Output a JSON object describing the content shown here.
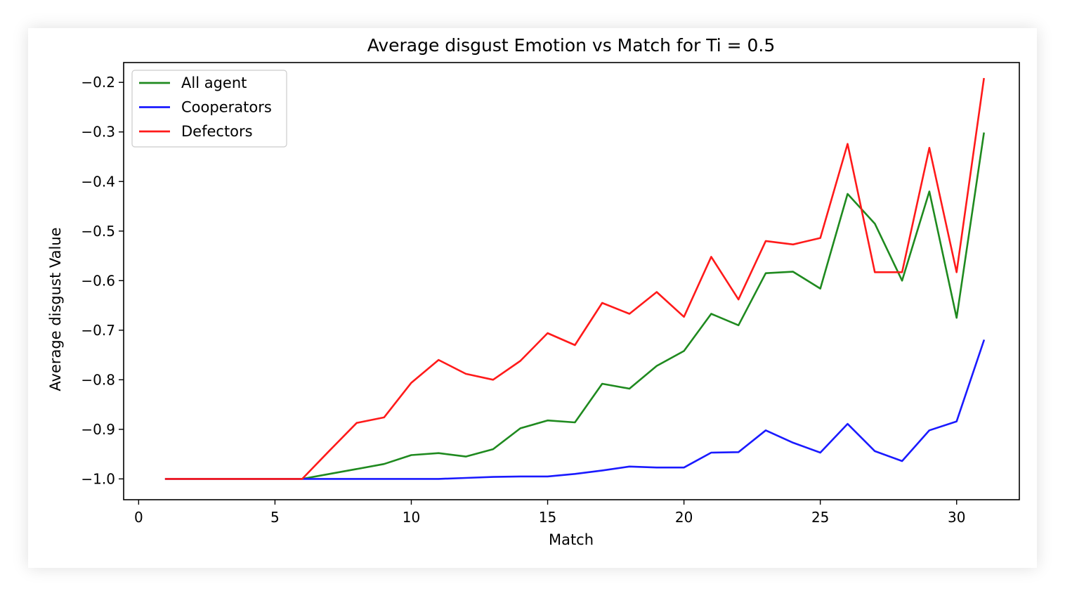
{
  "chart_data": {
    "type": "line",
    "title": "Average disgust Emotion vs Match for Ti = 0.5",
    "xlabel": "Match",
    "ylabel": "Average disgust Value",
    "xlim": [
      -0.55,
      32.3
    ],
    "ylim": [
      -1.042,
      -0.16
    ],
    "xticks": [
      0,
      5,
      10,
      15,
      20,
      25,
      30
    ],
    "xtick_labels": [
      "0",
      "5",
      "10",
      "15",
      "20",
      "25",
      "30"
    ],
    "yticks": [
      -1.0,
      -0.9,
      -0.8,
      -0.7,
      -0.6,
      -0.5,
      -0.4,
      -0.3,
      -0.2
    ],
    "ytick_labels": [
      "−1.0",
      "−0.9",
      "−0.8",
      "−0.7",
      "−0.6",
      "−0.5",
      "−0.4",
      "−0.3",
      "−0.2"
    ],
    "grid": false,
    "legend_position": "top-left",
    "x": [
      1,
      2,
      3,
      4,
      5,
      6,
      7,
      8,
      9,
      10,
      11,
      12,
      13,
      14,
      15,
      16,
      17,
      18,
      19,
      20,
      21,
      22,
      23,
      24,
      25,
      26,
      27,
      28,
      29,
      30,
      31
    ],
    "series": [
      {
        "name": "All agent",
        "color": "#1f8a1f",
        "values": [
          -1.0,
          -1.0,
          -1.0,
          -1.0,
          -1.0,
          -1.0,
          -0.99,
          -0.98,
          -0.97,
          -0.952,
          -0.948,
          -0.955,
          -0.94,
          -0.898,
          -0.882,
          -0.886,
          -0.808,
          -0.818,
          -0.772,
          -0.742,
          -0.667,
          -0.69,
          -0.585,
          -0.582,
          -0.616,
          -0.425,
          -0.485,
          -0.6,
          -0.42,
          -0.675,
          -0.303
        ]
      },
      {
        "name": "Cooperators",
        "color": "#1a1aff",
        "values": [
          -1.0,
          -1.0,
          -1.0,
          -1.0,
          -1.0,
          -1.0,
          -1.0,
          -1.0,
          -1.0,
          -1.0,
          -1.0,
          -0.998,
          -0.996,
          -0.995,
          -0.995,
          -0.99,
          -0.983,
          -0.975,
          -0.977,
          -0.977,
          -0.947,
          -0.946,
          -0.902,
          -0.927,
          -0.947,
          -0.889,
          -0.944,
          -0.964,
          -0.902,
          -0.884,
          -0.721
        ]
      },
      {
        "name": "Defectors",
        "color": "#ff1a1a",
        "values": [
          -1.0,
          -1.0,
          -1.0,
          -1.0,
          -1.0,
          -1.0,
          -0.943,
          -0.887,
          -0.876,
          -0.806,
          -0.76,
          -0.788,
          -0.8,
          -0.762,
          -0.706,
          -0.73,
          -0.645,
          -0.667,
          -0.623,
          -0.673,
          -0.552,
          -0.638,
          -0.52,
          -0.527,
          -0.514,
          -0.324,
          -0.583,
          -0.583,
          -0.332,
          -0.583,
          -0.193
        ]
      }
    ]
  }
}
